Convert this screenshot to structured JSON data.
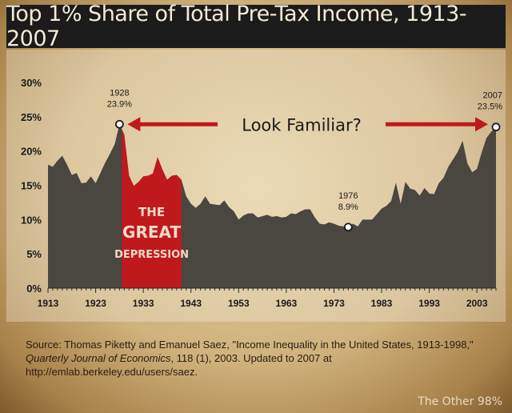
{
  "chart_data": {
    "type": "area",
    "title": "Top 1% Share of Total Pre-Tax Income, 1913-2007",
    "xlabel": "",
    "ylabel": "",
    "ylim": [
      0,
      30
    ],
    "xlim": [
      1913,
      2007
    ],
    "y_ticks": [
      "0%",
      "5%",
      "10%",
      "15%",
      "20%",
      "25%",
      "30%"
    ],
    "x_ticks": [
      "1913",
      "1923",
      "1933",
      "1943",
      "1953",
      "1963",
      "1973",
      "1983",
      "1993",
      "2003"
    ],
    "grid": false,
    "fill_color": "#4a4640",
    "highlight_color": "#c0191c",
    "x": [
      1913,
      1914,
      1915,
      1916,
      1917,
      1918,
      1919,
      1920,
      1921,
      1922,
      1923,
      1924,
      1925,
      1926,
      1927,
      1928,
      1929,
      1930,
      1931,
      1932,
      1933,
      1934,
      1935,
      1936,
      1937,
      1938,
      1939,
      1940,
      1941,
      1942,
      1943,
      1944,
      1945,
      1946,
      1947,
      1948,
      1949,
      1950,
      1951,
      1952,
      1953,
      1954,
      1955,
      1956,
      1957,
      1958,
      1959,
      1960,
      1961,
      1962,
      1963,
      1964,
      1965,
      1966,
      1967,
      1968,
      1969,
      1970,
      1971,
      1972,
      1973,
      1974,
      1975,
      1976,
      1977,
      1978,
      1979,
      1980,
      1981,
      1982,
      1983,
      1984,
      1985,
      1986,
      1987,
      1988,
      1989,
      1990,
      1991,
      1992,
      1993,
      1994,
      1995,
      1996,
      1997,
      1998,
      1999,
      2000,
      2001,
      2002,
      2003,
      2004,
      2005,
      2006,
      2007
    ],
    "values": [
      18.0,
      17.7,
      18.6,
      19.3,
      18.0,
      16.5,
      16.8,
      15.3,
      15.4,
      16.3,
      15.3,
      16.8,
      18.3,
      19.6,
      21.0,
      23.9,
      22.4,
      16.4,
      14.9,
      15.5,
      16.3,
      16.4,
      16.7,
      19.1,
      17.3,
      15.8,
      16.4,
      16.5,
      15.8,
      13.4,
      12.3,
      11.7,
      12.3,
      13.4,
      12.3,
      12.2,
      12.1,
      12.8,
      11.8,
      11.2,
      10.0,
      10.6,
      10.9,
      10.9,
      10.3,
      10.5,
      10.7,
      10.4,
      10.5,
      10.3,
      10.4,
      10.9,
      10.8,
      11.2,
      11.5,
      11.5,
      10.3,
      9.4,
      9.3,
      9.6,
      9.4,
      9.1,
      9.0,
      8.9,
      9.4,
      9.0,
      10.0,
      10.0,
      10.0,
      10.8,
      11.6,
      12.0,
      12.7,
      15.4,
      12.3,
      15.5,
      14.5,
      14.3,
      13.5,
      14.6,
      13.8,
      13.7,
      15.3,
      16.1,
      17.7,
      18.8,
      19.9,
      21.5,
      18.2,
      16.9,
      17.4,
      19.8,
      21.9,
      22.8,
      23.5
    ],
    "highlight": {
      "from": 1928.5,
      "to": 1941,
      "label_lines": [
        "THE",
        "GREAT",
        "DEPRESSION"
      ]
    },
    "annotations": [
      {
        "year_label": "1928",
        "value_label": "23.9%",
        "x": 1928,
        "y": 23.9
      },
      {
        "year_label": "1976",
        "value_label": "8.9%",
        "x": 1976,
        "y": 8.9
      },
      {
        "year_label": "2007",
        "value_label": "23.5%",
        "x": 2007,
        "y": 23.5
      }
    ],
    "arrow_text": "Look Familiar?"
  },
  "source": {
    "prefix": "Source: Thomas Piketty and Emanuel Saez, \"Income Inequality in the United States, 1913-1998,\" ",
    "journal": "Quarterly Journal of Economics",
    "suffix": ", 118 (1), 2003. Updated to 2007 at http://emlab.berkeley.edu/users/saez."
  },
  "credit": "The Other 98%"
}
